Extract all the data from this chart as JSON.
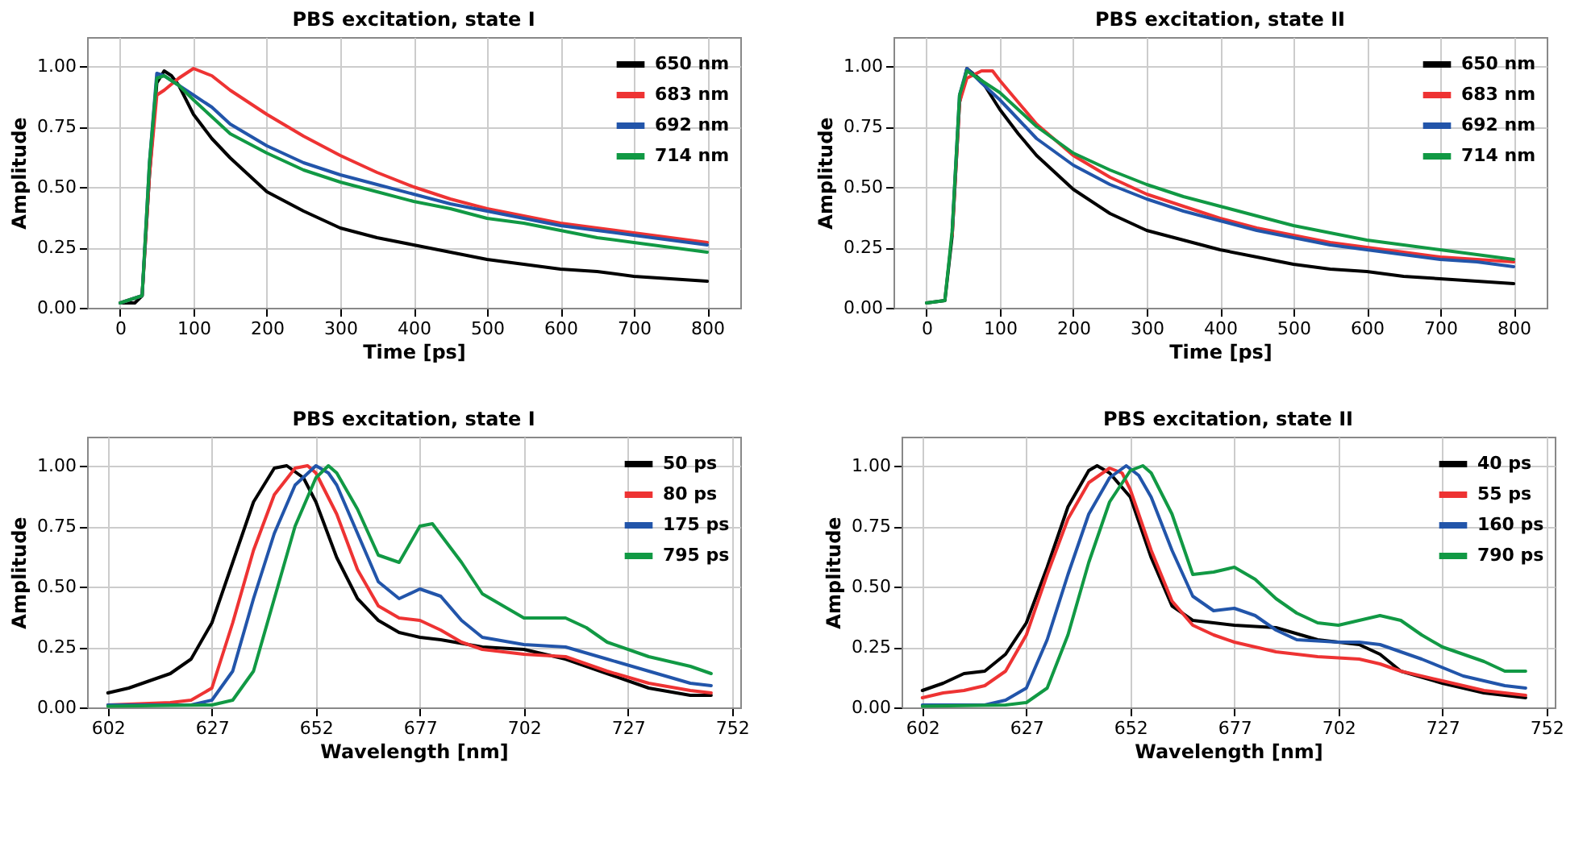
{
  "chart_data": [
    {
      "type": "line",
      "title": "PBS excitation, state I",
      "xlabel": "Time [ps]",
      "ylabel": "Amplitude",
      "xlim": [
        -45,
        845
      ],
      "ylim": [
        0,
        1.12
      ],
      "xticks": [
        0,
        100,
        200,
        300,
        400,
        500,
        600,
        700,
        800
      ],
      "yticks": [
        {
          "value": 0,
          "label": "0.00"
        },
        {
          "value": 0.25,
          "label": "0.25"
        },
        {
          "value": 0.5,
          "label": "0.50"
        },
        {
          "value": 0.75,
          "label": "0.75"
        },
        {
          "value": 1,
          "label": "1.00"
        }
      ],
      "grid": true,
      "legend": "top right",
      "marker": "none",
      "line_style": "solid",
      "series": [
        {
          "name": "650 nm",
          "color": "#000000",
          "x": [
            0,
            20,
            30,
            40,
            50,
            60,
            70,
            80,
            100,
            125,
            150,
            200,
            250,
            300,
            350,
            400,
            450,
            500,
            550,
            600,
            650,
            700,
            750,
            800
          ],
          "values": [
            0.02,
            0.02,
            0.05,
            0.55,
            0.93,
            0.98,
            0.96,
            0.92,
            0.8,
            0.7,
            0.62,
            0.48,
            0.4,
            0.33,
            0.29,
            0.26,
            0.23,
            0.2,
            0.18,
            0.16,
            0.15,
            0.13,
            0.12,
            0.11
          ]
        },
        {
          "name": "683 nm",
          "color": "#ee3333",
          "x": [
            0,
            30,
            40,
            50,
            60,
            80,
            100,
            125,
            150,
            200,
            250,
            300,
            350,
            400,
            450,
            500,
            550,
            600,
            650,
            700,
            750,
            800
          ],
          "values": [
            0.02,
            0.05,
            0.55,
            0.88,
            0.9,
            0.95,
            0.99,
            0.96,
            0.9,
            0.8,
            0.71,
            0.63,
            0.56,
            0.5,
            0.45,
            0.41,
            0.38,
            0.35,
            0.33,
            0.31,
            0.29,
            0.27
          ]
        },
        {
          "name": "692 nm",
          "color": "#2255aa",
          "x": [
            0,
            30,
            40,
            50,
            60,
            80,
            100,
            125,
            150,
            200,
            250,
            300,
            350,
            400,
            450,
            500,
            550,
            600,
            650,
            700,
            750,
            800
          ],
          "values": [
            0.02,
            0.05,
            0.6,
            0.97,
            0.96,
            0.92,
            0.88,
            0.83,
            0.76,
            0.67,
            0.6,
            0.55,
            0.51,
            0.47,
            0.43,
            0.4,
            0.37,
            0.34,
            0.32,
            0.3,
            0.28,
            0.26
          ]
        },
        {
          "name": "714 nm",
          "color": "#119944",
          "x": [
            0,
            30,
            40,
            50,
            60,
            80,
            100,
            125,
            150,
            200,
            250,
            300,
            350,
            400,
            450,
            500,
            550,
            600,
            650,
            700,
            750,
            800
          ],
          "values": [
            0.02,
            0.05,
            0.6,
            0.95,
            0.96,
            0.92,
            0.86,
            0.79,
            0.72,
            0.64,
            0.57,
            0.52,
            0.48,
            0.44,
            0.41,
            0.37,
            0.35,
            0.32,
            0.29,
            0.27,
            0.25,
            0.23
          ]
        }
      ]
    },
    {
      "type": "line",
      "title": "PBS excitation, state II",
      "xlabel": "Time [ps]",
      "ylabel": "Amplitude",
      "xlim": [
        -45,
        845
      ],
      "ylim": [
        0,
        1.12
      ],
      "xticks": [
        0,
        100,
        200,
        300,
        400,
        500,
        600,
        700,
        800
      ],
      "yticks": [
        {
          "value": 0,
          "label": "0.00"
        },
        {
          "value": 0.25,
          "label": "0.25"
        },
        {
          "value": 0.5,
          "label": "0.50"
        },
        {
          "value": 0.75,
          "label": "0.75"
        },
        {
          "value": 1,
          "label": "1.00"
        }
      ],
      "grid": true,
      "legend": "top right",
      "marker": "none",
      "line_style": "solid",
      "series": [
        {
          "name": "650 nm",
          "color": "#000000",
          "x": [
            0,
            25,
            35,
            45,
            55,
            75,
            100,
            125,
            150,
            200,
            250,
            300,
            350,
            400,
            450,
            500,
            550,
            600,
            650,
            700,
            750,
            800
          ],
          "values": [
            0.02,
            0.03,
            0.3,
            0.85,
            0.99,
            0.94,
            0.82,
            0.72,
            0.63,
            0.49,
            0.39,
            0.32,
            0.28,
            0.24,
            0.21,
            0.18,
            0.16,
            0.15,
            0.13,
            0.12,
            0.11,
            0.1
          ]
        },
        {
          "name": "683 nm",
          "color": "#ee3333",
          "x": [
            35,
            45,
            55,
            75,
            90,
            100,
            125,
            150,
            200,
            250,
            300,
            350,
            400,
            450,
            500,
            550,
            600,
            650,
            700,
            750,
            800
          ],
          "values": [
            0.3,
            0.85,
            0.95,
            0.98,
            0.98,
            0.94,
            0.85,
            0.76,
            0.63,
            0.54,
            0.47,
            0.42,
            0.37,
            0.33,
            0.3,
            0.27,
            0.25,
            0.23,
            0.21,
            0.2,
            0.19
          ]
        },
        {
          "name": "692 nm",
          "color": "#2255aa",
          "x": [
            35,
            45,
            55,
            75,
            100,
            125,
            150,
            200,
            250,
            300,
            350,
            400,
            450,
            500,
            550,
            600,
            650,
            700,
            750,
            800
          ],
          "values": [
            0.32,
            0.88,
            0.99,
            0.93,
            0.86,
            0.78,
            0.7,
            0.59,
            0.51,
            0.45,
            0.4,
            0.36,
            0.32,
            0.29,
            0.26,
            0.24,
            0.22,
            0.2,
            0.19,
            0.17
          ]
        },
        {
          "name": "714 nm",
          "color": "#119944",
          "x": [
            0,
            25,
            35,
            45,
            55,
            75,
            100,
            125,
            150,
            200,
            250,
            300,
            350,
            400,
            450,
            500,
            550,
            600,
            650,
            700,
            750,
            800
          ],
          "values": [
            0.02,
            0.03,
            0.32,
            0.88,
            0.98,
            0.94,
            0.89,
            0.82,
            0.75,
            0.64,
            0.57,
            0.51,
            0.46,
            0.42,
            0.38,
            0.34,
            0.31,
            0.28,
            0.26,
            0.24,
            0.22,
            0.2
          ]
        }
      ]
    },
    {
      "type": "line",
      "title": "PBS excitation, state I",
      "xlabel": "Wavelength [nm]",
      "ylabel": "Amplitude",
      "xlim": [
        597,
        754
      ],
      "ylim": [
        0,
        1.12
      ],
      "xticks": [
        602,
        627,
        652,
        677,
        702,
        727,
        752
      ],
      "yticks": [
        {
          "value": 0,
          "label": "0.00"
        },
        {
          "value": 0.25,
          "label": "0.25"
        },
        {
          "value": 0.5,
          "label": "0.50"
        },
        {
          "value": 0.75,
          "label": "0.75"
        },
        {
          "value": 1,
          "label": "1.00"
        }
      ],
      "grid": true,
      "legend": "top right",
      "marker": "none",
      "line_style": "solid",
      "series": [
        {
          "name": "50 ps",
          "color": "#000000",
          "x": [
            602,
            607,
            612,
            617,
            622,
            627,
            632,
            637,
            642,
            645,
            649,
            652,
            657,
            662,
            667,
            672,
            677,
            682,
            692,
            702,
            712,
            722,
            732,
            742,
            747
          ],
          "values": [
            0.06,
            0.08,
            0.11,
            0.14,
            0.2,
            0.35,
            0.6,
            0.85,
            0.99,
            1.0,
            0.95,
            0.85,
            0.62,
            0.45,
            0.36,
            0.31,
            0.29,
            0.28,
            0.25,
            0.24,
            0.2,
            0.14,
            0.08,
            0.05,
            0.05
          ]
        },
        {
          "name": "80 ps",
          "color": "#ee3333",
          "x": [
            602,
            617,
            622,
            627,
            632,
            637,
            642,
            647,
            650,
            652,
            657,
            662,
            667,
            672,
            677,
            682,
            687,
            692,
            702,
            712,
            722,
            732,
            742,
            747
          ],
          "values": [
            0.01,
            0.02,
            0.03,
            0.08,
            0.35,
            0.65,
            0.88,
            0.99,
            1.0,
            0.97,
            0.8,
            0.57,
            0.42,
            0.37,
            0.36,
            0.32,
            0.27,
            0.24,
            0.22,
            0.21,
            0.15,
            0.1,
            0.07,
            0.06
          ]
        },
        {
          "name": "175 ps",
          "color": "#2255aa",
          "x": [
            602,
            622,
            627,
            632,
            637,
            642,
            647,
            652,
            655,
            657,
            662,
            667,
            672,
            677,
            682,
            687,
            692,
            702,
            712,
            722,
            732,
            742,
            747
          ],
          "values": [
            0.01,
            0.01,
            0.03,
            0.15,
            0.45,
            0.72,
            0.92,
            1.0,
            0.97,
            0.92,
            0.72,
            0.52,
            0.45,
            0.49,
            0.46,
            0.36,
            0.29,
            0.26,
            0.25,
            0.2,
            0.15,
            0.1,
            0.09
          ]
        },
        {
          "name": "795 ps",
          "color": "#119944",
          "x": [
            602,
            627,
            632,
            637,
            642,
            647,
            652,
            655,
            657,
            662,
            667,
            672,
            677,
            680,
            687,
            692,
            702,
            712,
            717,
            722,
            732,
            742,
            747
          ],
          "values": [
            0.005,
            0.01,
            0.03,
            0.15,
            0.45,
            0.75,
            0.95,
            1.0,
            0.97,
            0.82,
            0.63,
            0.6,
            0.75,
            0.76,
            0.6,
            0.47,
            0.37,
            0.37,
            0.33,
            0.27,
            0.21,
            0.17,
            0.14
          ]
        }
      ]
    },
    {
      "type": "line",
      "title": "PBS excitation, state II",
      "xlabel": "Wavelength [nm]",
      "ylabel": "Amplitude",
      "xlim": [
        597,
        754
      ],
      "ylim": [
        0,
        1.12
      ],
      "xticks": [
        602,
        627,
        652,
        677,
        702,
        727,
        752
      ],
      "yticks": [
        {
          "value": 0,
          "label": "0.00"
        },
        {
          "value": 0.25,
          "label": "0.25"
        },
        {
          "value": 0.5,
          "label": "0.50"
        },
        {
          "value": 0.75,
          "label": "0.75"
        },
        {
          "value": 1,
          "label": "1.00"
        }
      ],
      "grid": true,
      "legend": "top right",
      "marker": "none",
      "line_style": "solid",
      "series": [
        {
          "name": "40 ps",
          "color": "#000000",
          "x": [
            602,
            607,
            612,
            617,
            622,
            627,
            632,
            637,
            642,
            644,
            647,
            652,
            657,
            662,
            667,
            672,
            677,
            687,
            697,
            707,
            712,
            717,
            727,
            737,
            747
          ],
          "values": [
            0.07,
            0.1,
            0.14,
            0.15,
            0.22,
            0.35,
            0.58,
            0.83,
            0.98,
            1.0,
            0.97,
            0.87,
            0.62,
            0.42,
            0.36,
            0.35,
            0.34,
            0.33,
            0.28,
            0.26,
            0.22,
            0.15,
            0.1,
            0.06,
            0.04
          ]
        },
        {
          "name": "55 ps",
          "color": "#ee3333",
          "x": [
            602,
            607,
            612,
            617,
            622,
            627,
            632,
            637,
            642,
            647,
            650,
            652,
            657,
            662,
            667,
            672,
            677,
            687,
            697,
            707,
            712,
            717,
            727,
            737,
            747
          ],
          "values": [
            0.04,
            0.06,
            0.07,
            0.09,
            0.15,
            0.3,
            0.55,
            0.78,
            0.93,
            0.99,
            0.97,
            0.9,
            0.65,
            0.44,
            0.34,
            0.3,
            0.27,
            0.23,
            0.21,
            0.2,
            0.18,
            0.15,
            0.11,
            0.07,
            0.05
          ]
        },
        {
          "name": "160 ps",
          "color": "#2255aa",
          "x": [
            602,
            617,
            622,
            627,
            632,
            637,
            642,
            647,
            651,
            654,
            657,
            662,
            667,
            672,
            677,
            682,
            687,
            692,
            702,
            707,
            712,
            722,
            732,
            742,
            747
          ],
          "values": [
            0.01,
            0.01,
            0.03,
            0.08,
            0.28,
            0.55,
            0.8,
            0.95,
            1.0,
            0.96,
            0.87,
            0.65,
            0.46,
            0.4,
            0.41,
            0.38,
            0.32,
            0.28,
            0.27,
            0.27,
            0.26,
            0.2,
            0.13,
            0.09,
            0.08
          ]
        },
        {
          "name": "790 ps",
          "color": "#119944",
          "x": [
            602,
            622,
            627,
            632,
            637,
            642,
            647,
            652,
            655,
            657,
            662,
            667,
            672,
            677,
            682,
            687,
            692,
            697,
            702,
            712,
            717,
            722,
            727,
            737,
            742,
            747
          ],
          "values": [
            0.005,
            0.01,
            0.02,
            0.08,
            0.3,
            0.6,
            0.85,
            0.98,
            1.0,
            0.97,
            0.8,
            0.55,
            0.56,
            0.58,
            0.53,
            0.45,
            0.39,
            0.35,
            0.34,
            0.38,
            0.36,
            0.3,
            0.25,
            0.19,
            0.15,
            0.15
          ]
        }
      ]
    }
  ]
}
